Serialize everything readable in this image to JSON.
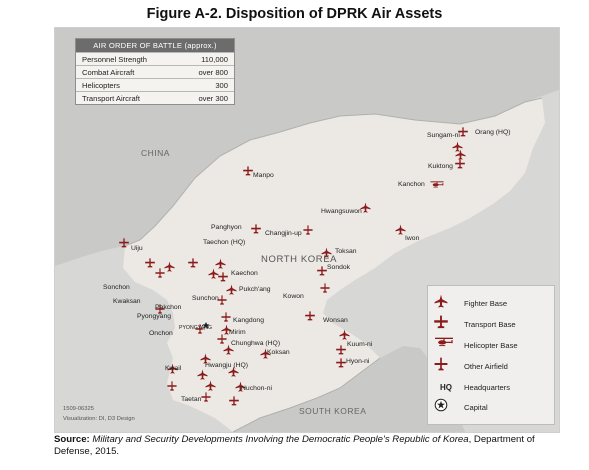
{
  "title": "Figure A-2. Disposition of DPRK Air Assets",
  "order_of_battle": {
    "header": "AIR ORDER OF BATTLE (approx.)",
    "rows": [
      {
        "label": "Personnel Strength",
        "value": "110,000"
      },
      {
        "label": "Combat Aircraft",
        "value": "over 800"
      },
      {
        "label": "Helicopters",
        "value": "300"
      },
      {
        "label": "Transport Aircraft",
        "value": "over 300"
      }
    ]
  },
  "regions": {
    "china": "CHINA",
    "north_korea": "NORTH KOREA",
    "south_korea": "SOUTH KOREA"
  },
  "legend": [
    {
      "symbol": "fighter-icon",
      "label": "Fighter Base"
    },
    {
      "symbol": "transport-icon",
      "label": "Transport Base"
    },
    {
      "symbol": "helicopter-icon",
      "label": "Helicopter Base"
    },
    {
      "symbol": "airfield-icon",
      "label": "Other Airfield"
    },
    {
      "symbol": "HQ",
      "label": "Headquarters"
    },
    {
      "symbol": "star-icon",
      "label": "Capital"
    }
  ],
  "places": {
    "sungam_ni": "Sungam-ni",
    "orang": "Orang (HQ)",
    "kuktong": "Kuktong",
    "kanchon": "Kanchon",
    "manpo": "Manpo",
    "hwangsuwon": "Hwangsuwon",
    "iwon": "Iwon",
    "changjin_up": "Changjin-up",
    "panghyon": "Panghyon",
    "taechon": "Taechon (HQ)",
    "uiju": "Uiju",
    "toksan": "Toksan",
    "sondok": "Sondok",
    "kaechon": "Kaechon",
    "sonchon": "Sonchon",
    "pukchang": "Pukch'ang",
    "kwaksan": "Kwaksan",
    "pakchon": "Pakchon",
    "sunchon": "Sunchon",
    "kowon": "Kowon",
    "pyongyang": "Pyongyang",
    "kangdong": "Kangdong",
    "wonsan": "Wonsan",
    "onchon": "Onchon",
    "pyongyang_capital": "PYONGYANG",
    "mirim": "Mirim",
    "chunghwa": "Chunghwa (HQ)",
    "kuum_ni": "Kuum-ni",
    "koksan": "Koksan",
    "hyon_ni": "Hyon-ni",
    "kwail": "Kwail",
    "hwangju": "Hwangju (HQ)",
    "nuchon_ni": "Nuchon-ni",
    "taetan": "Taetan"
  },
  "credit": {
    "code": "1509-06325",
    "visualization": "Visualization: DI, D3 Design"
  },
  "source": {
    "label": "Source:",
    "publication": "Military and Security Developments Involving the Democratic People's Republic of Korea",
    "rest": ", Department of Defense, 2015."
  },
  "colors": {
    "land_nk": "#ece9e4",
    "land_other": "#c9c9c7",
    "water": "#d7d7d5",
    "marker": "#8b1a1a"
  }
}
